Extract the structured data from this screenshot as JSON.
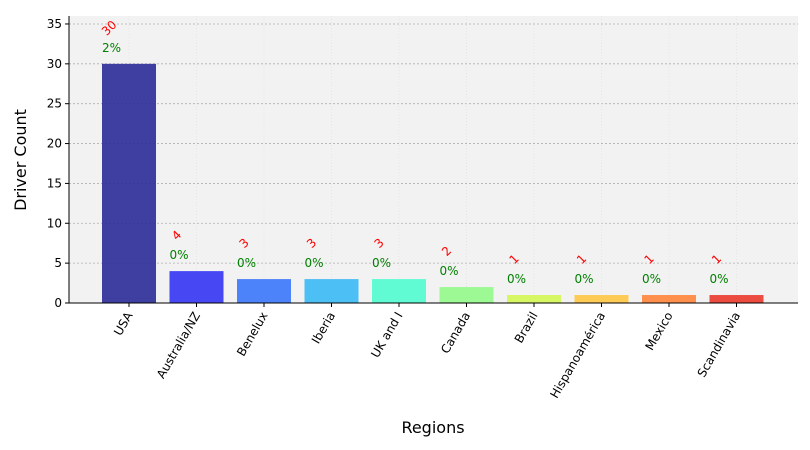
{
  "chart_data": {
    "type": "bar",
    "categories": [
      "USA",
      "Australia/NZ",
      "Benelux",
      "Iberia",
      "UK and I",
      "Canada",
      "Brazil",
      "Hispanoamérica",
      "Mexico",
      "Scandinavia"
    ],
    "values": [
      30,
      4,
      3,
      3,
      3,
      2,
      1,
      1,
      1,
      1
    ],
    "count_labels": [
      "30",
      "4",
      "3",
      "3",
      "3",
      "2",
      "1",
      "1",
      "1",
      "1"
    ],
    "percent_labels": [
      "2%",
      "0%",
      "0%",
      "0%",
      "0%",
      "0%",
      "0%",
      "0%",
      "0%",
      "0%"
    ],
    "xlabel": "Regions",
    "ylabel": "Driver Count",
    "ylim": [
      0,
      36
    ],
    "yticks": [
      0,
      5,
      10,
      15,
      20,
      25,
      30,
      35
    ],
    "grid": true,
    "legend": "none",
    "colors": [
      "#2b2b99",
      "#3434f4",
      "#3a76fb",
      "#3ab9f5",
      "#50fccf",
      "#92f98a",
      "#d3f753",
      "#ffc845",
      "#ff843a",
      "#ea3a2b"
    ],
    "count_label_color": "#ff0000",
    "percent_label_color": "#008000",
    "plot_background": "#f2f2f2"
  }
}
